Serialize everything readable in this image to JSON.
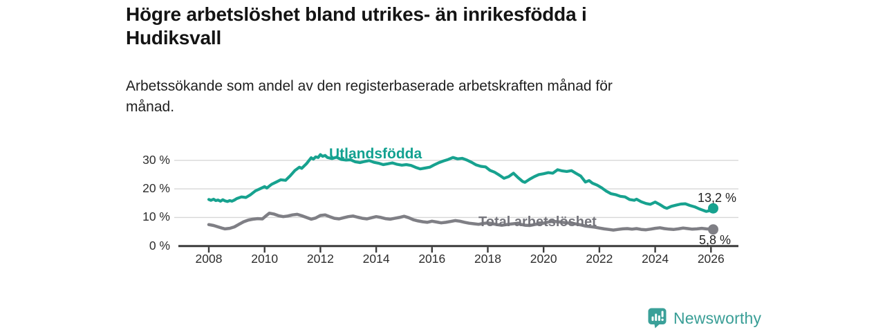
{
  "header": {
    "title": "Högre arbetslöshet bland utrikes- än inrikesfödda i Hudiksvall",
    "title_line1": "Högre arbetslöshet bland utrikes- än inrikesfödda i",
    "title_line2": "Hudiksvall",
    "subtitle_line1": "Arbetssökande som andel av den registerbaserade arbetskraften månad för",
    "subtitle_line2": "månad."
  },
  "footer": {
    "brand": "Newsworthy",
    "brand_color": "#399e96"
  },
  "chart_data": {
    "type": "line",
    "title": "Högre arbetslöshet bland utrikes- än inrikesfödda i Hudiksvall",
    "subtitle": "Arbetssökande som andel av den registerbaserade arbetskraften månad för månad.",
    "xlabel": "",
    "ylabel": "",
    "grid": "horizontal",
    "legend_position": "inline-labels",
    "xlim": [
      2006.9,
      2027.0
    ],
    "ylim": [
      0,
      34
    ],
    "x_ticks": [
      {
        "value": 2008,
        "label": "2008"
      },
      {
        "value": 2010,
        "label": "2010"
      },
      {
        "value": 2012,
        "label": "2012"
      },
      {
        "value": 2014,
        "label": "2014"
      },
      {
        "value": 2016,
        "label": "2016"
      },
      {
        "value": 2018,
        "label": "2018"
      },
      {
        "value": 2020,
        "label": "2020"
      },
      {
        "value": 2022,
        "label": "2022"
      },
      {
        "value": 2024,
        "label": "2024"
      },
      {
        "value": 2026,
        "label": "2026"
      }
    ],
    "y_ticks": [
      {
        "value": 0,
        "label": "0 %"
      },
      {
        "value": 10,
        "label": "10 %"
      },
      {
        "value": 20,
        "label": "20 %"
      },
      {
        "value": 30,
        "label": "30 %"
      }
    ],
    "series": [
      {
        "name": "Utlandsfödda",
        "color": "#17a28f",
        "end_value": 13.2,
        "end_label": "13,2 %",
        "points": [
          [
            2008.0,
            16.3
          ],
          [
            2008.08,
            16.0
          ],
          [
            2008.17,
            16.4
          ],
          [
            2008.25,
            15.9
          ],
          [
            2008.33,
            16.1
          ],
          [
            2008.42,
            15.7
          ],
          [
            2008.5,
            16.2
          ],
          [
            2008.58,
            15.8
          ],
          [
            2008.67,
            15.6
          ],
          [
            2008.75,
            15.9
          ],
          [
            2008.83,
            15.7
          ],
          [
            2008.92,
            16.1
          ],
          [
            2009.0,
            16.6
          ],
          [
            2009.17,
            17.2
          ],
          [
            2009.33,
            17.0
          ],
          [
            2009.5,
            18.0
          ],
          [
            2009.67,
            19.3
          ],
          [
            2009.83,
            20.0
          ],
          [
            2010.0,
            20.8
          ],
          [
            2010.08,
            20.3
          ],
          [
            2010.25,
            21.6
          ],
          [
            2010.42,
            22.4
          ],
          [
            2010.58,
            23.2
          ],
          [
            2010.75,
            23.0
          ],
          [
            2010.92,
            24.6
          ],
          [
            2011.08,
            26.4
          ],
          [
            2011.25,
            27.6
          ],
          [
            2011.33,
            27.2
          ],
          [
            2011.5,
            28.8
          ],
          [
            2011.58,
            29.8
          ],
          [
            2011.67,
            30.9
          ],
          [
            2011.75,
            30.4
          ],
          [
            2011.83,
            31.2
          ],
          [
            2011.92,
            31.0
          ],
          [
            2012.0,
            32.0
          ],
          [
            2012.08,
            31.4
          ],
          [
            2012.17,
            31.7
          ],
          [
            2012.25,
            31.0
          ],
          [
            2012.42,
            30.6
          ],
          [
            2012.58,
            31.1
          ],
          [
            2012.75,
            30.3
          ],
          [
            2012.92,
            30.1
          ],
          [
            2013.08,
            30.2
          ],
          [
            2013.25,
            29.5
          ],
          [
            2013.42,
            29.2
          ],
          [
            2013.58,
            29.6
          ],
          [
            2013.75,
            29.9
          ],
          [
            2013.92,
            29.3
          ],
          [
            2014.08,
            29.0
          ],
          [
            2014.25,
            28.5
          ],
          [
            2014.42,
            28.8
          ],
          [
            2014.58,
            29.1
          ],
          [
            2014.75,
            28.6
          ],
          [
            2014.92,
            28.3
          ],
          [
            2015.08,
            28.5
          ],
          [
            2015.25,
            28.2
          ],
          [
            2015.42,
            27.5
          ],
          [
            2015.58,
            27.0
          ],
          [
            2015.75,
            27.3
          ],
          [
            2015.92,
            27.6
          ],
          [
            2016.08,
            28.4
          ],
          [
            2016.25,
            29.2
          ],
          [
            2016.42,
            29.8
          ],
          [
            2016.58,
            30.3
          ],
          [
            2016.75,
            31.0
          ],
          [
            2016.92,
            30.5
          ],
          [
            2017.08,
            30.7
          ],
          [
            2017.25,
            30.1
          ],
          [
            2017.42,
            29.3
          ],
          [
            2017.58,
            28.4
          ],
          [
            2017.75,
            27.9
          ],
          [
            2017.92,
            27.7
          ],
          [
            2018.08,
            26.5
          ],
          [
            2018.25,
            25.8
          ],
          [
            2018.42,
            24.8
          ],
          [
            2018.58,
            23.7
          ],
          [
            2018.75,
            24.3
          ],
          [
            2018.92,
            25.5
          ],
          [
            2019.08,
            24.0
          ],
          [
            2019.25,
            22.6
          ],
          [
            2019.33,
            22.3
          ],
          [
            2019.5,
            23.4
          ],
          [
            2019.67,
            24.3
          ],
          [
            2019.83,
            25.0
          ],
          [
            2020.0,
            25.3
          ],
          [
            2020.17,
            25.7
          ],
          [
            2020.33,
            25.5
          ],
          [
            2020.5,
            26.7
          ],
          [
            2020.67,
            26.3
          ],
          [
            2020.83,
            26.1
          ],
          [
            2021.0,
            26.4
          ],
          [
            2021.17,
            25.4
          ],
          [
            2021.33,
            24.5
          ],
          [
            2021.5,
            22.4
          ],
          [
            2021.63,
            22.9
          ],
          [
            2021.75,
            22.0
          ],
          [
            2021.92,
            21.3
          ],
          [
            2022.08,
            20.4
          ],
          [
            2022.25,
            19.2
          ],
          [
            2022.42,
            18.3
          ],
          [
            2022.58,
            18.0
          ],
          [
            2022.75,
            17.4
          ],
          [
            2022.92,
            17.2
          ],
          [
            2023.08,
            16.3
          ],
          [
            2023.25,
            16.0
          ],
          [
            2023.33,
            16.4
          ],
          [
            2023.5,
            15.5
          ],
          [
            2023.67,
            14.9
          ],
          [
            2023.83,
            14.6
          ],
          [
            2024.0,
            15.4
          ],
          [
            2024.17,
            14.5
          ],
          [
            2024.33,
            13.5
          ],
          [
            2024.42,
            13.2
          ],
          [
            2024.58,
            13.9
          ],
          [
            2024.75,
            14.3
          ],
          [
            2024.92,
            14.7
          ],
          [
            2025.08,
            14.8
          ],
          [
            2025.25,
            14.2
          ],
          [
            2025.42,
            13.7
          ],
          [
            2025.58,
            13.0
          ],
          [
            2025.75,
            12.4
          ],
          [
            2025.83,
            12.1
          ],
          [
            2026.0,
            12.5
          ],
          [
            2026.08,
            13.2
          ]
        ]
      },
      {
        "name": "Total arbetslöshet",
        "color": "#7f7f85",
        "end_value": 5.8,
        "end_label": "5,8 %",
        "points": [
          [
            2008.0,
            7.5
          ],
          [
            2008.17,
            7.2
          ],
          [
            2008.33,
            6.7
          ],
          [
            2008.5,
            6.2
          ],
          [
            2008.58,
            6.0
          ],
          [
            2008.75,
            6.2
          ],
          [
            2008.92,
            6.7
          ],
          [
            2009.08,
            7.6
          ],
          [
            2009.25,
            8.5
          ],
          [
            2009.42,
            9.1
          ],
          [
            2009.58,
            9.4
          ],
          [
            2009.75,
            9.6
          ],
          [
            2009.92,
            9.5
          ],
          [
            2010.08,
            10.8
          ],
          [
            2010.17,
            11.5
          ],
          [
            2010.33,
            11.2
          ],
          [
            2010.5,
            10.6
          ],
          [
            2010.67,
            10.3
          ],
          [
            2010.83,
            10.5
          ],
          [
            2011.0,
            10.9
          ],
          [
            2011.17,
            11.1
          ],
          [
            2011.33,
            10.6
          ],
          [
            2011.5,
            10.0
          ],
          [
            2011.67,
            9.4
          ],
          [
            2011.83,
            9.8
          ],
          [
            2012.0,
            10.7
          ],
          [
            2012.17,
            10.9
          ],
          [
            2012.33,
            10.3
          ],
          [
            2012.5,
            9.7
          ],
          [
            2012.67,
            9.5
          ],
          [
            2012.83,
            9.9
          ],
          [
            2013.0,
            10.3
          ],
          [
            2013.17,
            10.5
          ],
          [
            2013.33,
            10.1
          ],
          [
            2013.5,
            9.7
          ],
          [
            2013.67,
            9.5
          ],
          [
            2013.83,
            9.9
          ],
          [
            2014.0,
            10.3
          ],
          [
            2014.17,
            10.0
          ],
          [
            2014.33,
            9.6
          ],
          [
            2014.5,
            9.4
          ],
          [
            2014.67,
            9.7
          ],
          [
            2014.83,
            10.0
          ],
          [
            2015.0,
            10.4
          ],
          [
            2015.17,
            9.9
          ],
          [
            2015.33,
            9.2
          ],
          [
            2015.5,
            8.8
          ],
          [
            2015.67,
            8.5
          ],
          [
            2015.83,
            8.3
          ],
          [
            2016.0,
            8.7
          ],
          [
            2016.17,
            8.4
          ],
          [
            2016.33,
            8.1
          ],
          [
            2016.5,
            8.3
          ],
          [
            2016.67,
            8.6
          ],
          [
            2016.83,
            8.9
          ],
          [
            2017.0,
            8.7
          ],
          [
            2017.17,
            8.3
          ],
          [
            2017.33,
            8.0
          ],
          [
            2017.5,
            7.8
          ],
          [
            2017.67,
            7.6
          ],
          [
            2017.83,
            7.9
          ],
          [
            2018.0,
            8.1
          ],
          [
            2018.17,
            7.8
          ],
          [
            2018.33,
            7.5
          ],
          [
            2018.5,
            7.3
          ],
          [
            2018.67,
            7.5
          ],
          [
            2018.83,
            7.7
          ],
          [
            2019.0,
            7.9
          ],
          [
            2019.17,
            7.6
          ],
          [
            2019.33,
            7.3
          ],
          [
            2019.5,
            7.2
          ],
          [
            2019.67,
            7.5
          ],
          [
            2019.83,
            7.8
          ],
          [
            2020.0,
            8.0
          ],
          [
            2020.17,
            8.4
          ],
          [
            2020.33,
            8.7
          ],
          [
            2020.5,
            8.5
          ],
          [
            2020.67,
            8.3
          ],
          [
            2020.83,
            8.1
          ],
          [
            2021.0,
            8.0
          ],
          [
            2021.17,
            7.7
          ],
          [
            2021.33,
            7.4
          ],
          [
            2021.5,
            7.0
          ],
          [
            2021.67,
            6.8
          ],
          [
            2021.83,
            6.6
          ],
          [
            2022.0,
            6.3
          ],
          [
            2022.17,
            6.0
          ],
          [
            2022.33,
            5.8
          ],
          [
            2022.5,
            5.6
          ],
          [
            2022.67,
            5.8
          ],
          [
            2022.83,
            6.0
          ],
          [
            2023.0,
            6.1
          ],
          [
            2023.17,
            5.9
          ],
          [
            2023.33,
            6.1
          ],
          [
            2023.5,
            5.8
          ],
          [
            2023.67,
            5.7
          ],
          [
            2023.83,
            5.9
          ],
          [
            2024.0,
            6.2
          ],
          [
            2024.17,
            6.4
          ],
          [
            2024.33,
            6.1
          ],
          [
            2024.5,
            5.9
          ],
          [
            2024.67,
            5.8
          ],
          [
            2024.83,
            6.0
          ],
          [
            2025.0,
            6.3
          ],
          [
            2025.17,
            6.1
          ],
          [
            2025.33,
            5.9
          ],
          [
            2025.5,
            6.0
          ],
          [
            2025.67,
            6.2
          ],
          [
            2025.83,
            6.0
          ],
          [
            2026.0,
            5.9
          ],
          [
            2026.08,
            5.8
          ]
        ]
      }
    ]
  },
  "colors": {
    "axis": "#3b3b3b",
    "gridline": "#d7d7d7",
    "tick_text": "#2d2d2d",
    "title_text": "#141414",
    "series0": "#17a28f",
    "series1": "#7f7f85"
  }
}
